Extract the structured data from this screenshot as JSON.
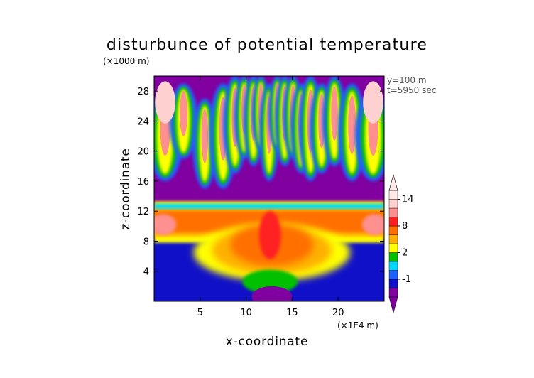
{
  "chart_data": {
    "type": "heatmap",
    "title": "disturbunce of potential temperature",
    "xlabel": "x-coordinate",
    "ylabel": "z-coordinate",
    "x_unit": "(×1E4 m)",
    "y_unit": "(×1000 m)",
    "xlim": [
      0,
      25
    ],
    "ylim": [
      0,
      30
    ],
    "x_ticks": [
      5,
      10,
      15,
      20
    ],
    "y_ticks": [
      4,
      8,
      12,
      16,
      20,
      24,
      28
    ],
    "annotations": [
      "y=100 m",
      "t=5950 sec"
    ],
    "colorbar": {
      "levels": [
        -2,
        -1,
        0,
        1,
        2,
        4,
        6,
        8,
        10,
        12,
        14,
        16
      ],
      "labels": [
        -1,
        2,
        8,
        14
      ],
      "colors": [
        "#8000a0",
        "#1010c8",
        "#2060ff",
        "#00d8ff",
        "#00c000",
        "#ffff00",
        "#ffb000",
        "#ff7000",
        "#ff2020",
        "#ff9090",
        "#ffd0d0",
        "#ffe8e8"
      ],
      "extend": "both"
    },
    "layers": [
      {
        "region": "z 0–1 near x 10–15",
        "value": -2
      },
      {
        "region": "z 0–8 outside x 7–19",
        "value": -1
      },
      {
        "region": "z 8–13, all x",
        "value": 8
      },
      {
        "region": "z 13–30",
        "value": -2
      },
      {
        "region": "upper filaments",
        "value": 12
      }
    ]
  }
}
